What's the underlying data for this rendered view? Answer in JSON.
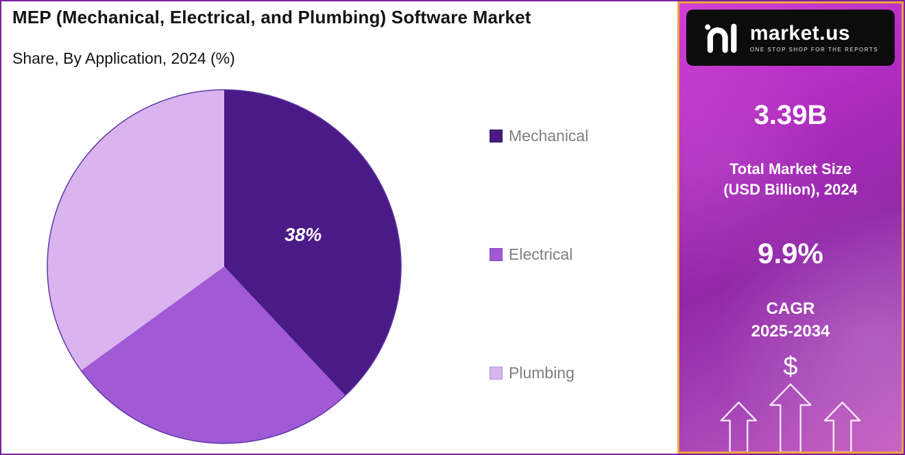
{
  "header": {
    "title": "MEP (Mechanical, Electrical, and Plumbing) Software Market",
    "subtitle": "Share, By Application, 2024 (%)"
  },
  "chart_data": {
    "type": "pie",
    "title": "MEP (Mechanical, Electrical, and Plumbing) Software Market Share, By Application, 2024 (%)",
    "categories": [
      "Mechanical",
      "Electrical",
      "Plumbing"
    ],
    "values": [
      38,
      27,
      35
    ],
    "unit": "%",
    "colors": [
      "#4a1a86",
      "#a159d6",
      "#dab4ee"
    ],
    "start_angle": "top",
    "direction": "clockwise",
    "data_labels": [
      "38%",
      "",
      ""
    ],
    "legend_position": "right",
    "outline_color": "#5e35a8"
  },
  "sidebar": {
    "logo_brand": "market.us",
    "logo_tagline": "ONE STOP SHOP FOR THE REPORTS",
    "stat_market_size_value": "3.39B",
    "stat_market_size_label_line1": "Total Market Size",
    "stat_market_size_label_line2": "(USD Billion), 2024",
    "stat_cagr_value": "9.9%",
    "stat_cagr_label_line1": "CAGR",
    "stat_cagr_label_line2": "2025-2034",
    "dollar_symbol": "$",
    "accent_border_color": "#f1a33c",
    "background_top_color": "#d13fd8",
    "background_bottom_color": "#9228a8"
  }
}
